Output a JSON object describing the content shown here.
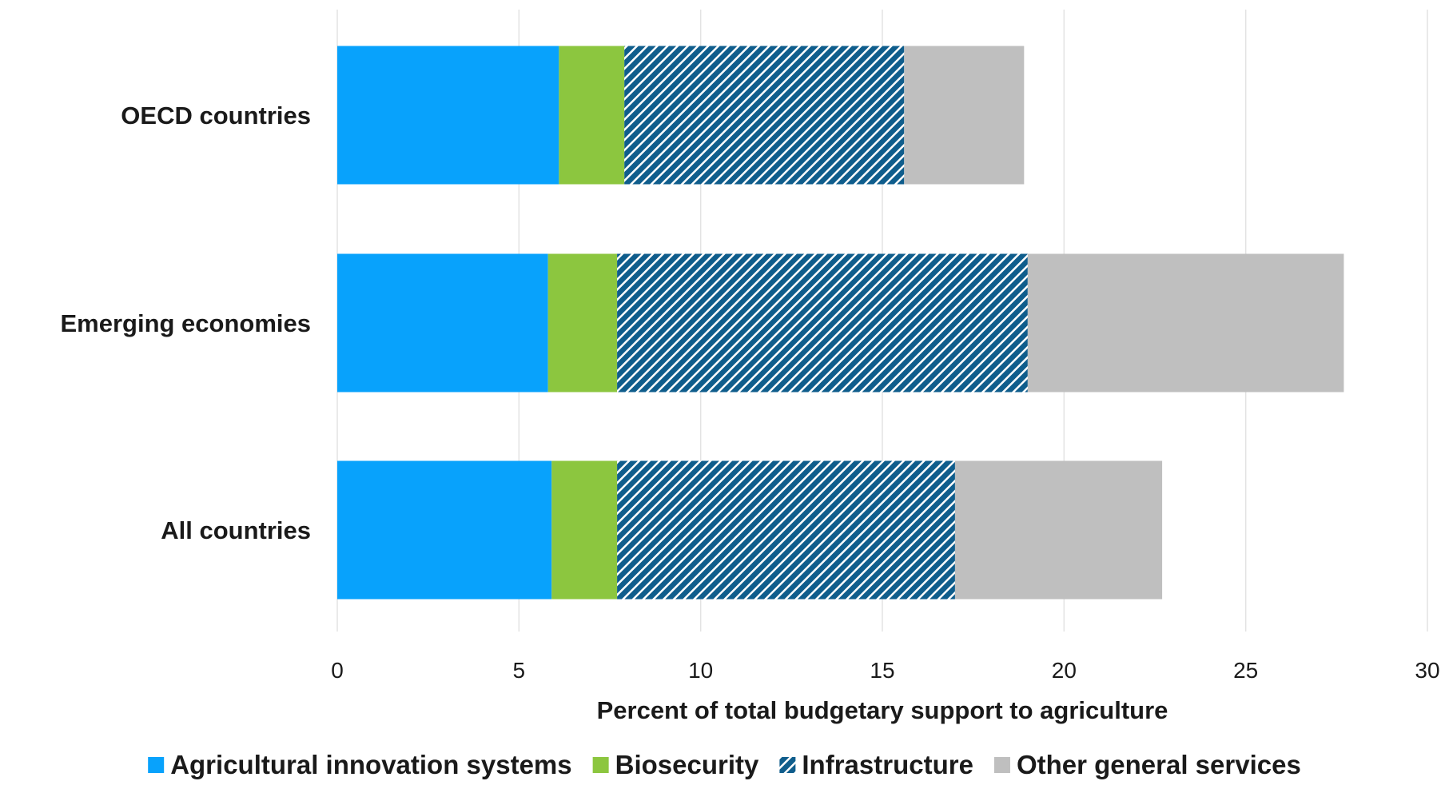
{
  "chart_data": {
    "type": "bar",
    "orientation": "horizontal",
    "stacked": true,
    "categories": [
      "OECD countries",
      "Emerging economies",
      "All countries"
    ],
    "series": [
      {
        "name": "Agricultural innovation systems",
        "values": [
          6.1,
          5.8,
          5.9
        ],
        "color": "#08a2fc",
        "pattern": "solid"
      },
      {
        "name": "Biosecurity",
        "values": [
          1.8,
          1.9,
          1.8
        ],
        "color": "#8cc63f",
        "pattern": "solid"
      },
      {
        "name": "Infrastructure",
        "values": [
          7.7,
          11.3,
          9.3
        ],
        "color": "#0f5d8c",
        "pattern": "hatch"
      },
      {
        "name": "Other general services",
        "values": [
          3.3,
          8.7,
          5.7
        ],
        "color": "#bfbfbf",
        "pattern": "solid"
      }
    ],
    "xlabel": "Percent of total budgetary support to agriculture",
    "xlim": [
      0,
      30
    ],
    "xticks": [
      0,
      5,
      10,
      15,
      20,
      25,
      30
    ],
    "grid": "vertical",
    "legend": "bottom"
  }
}
